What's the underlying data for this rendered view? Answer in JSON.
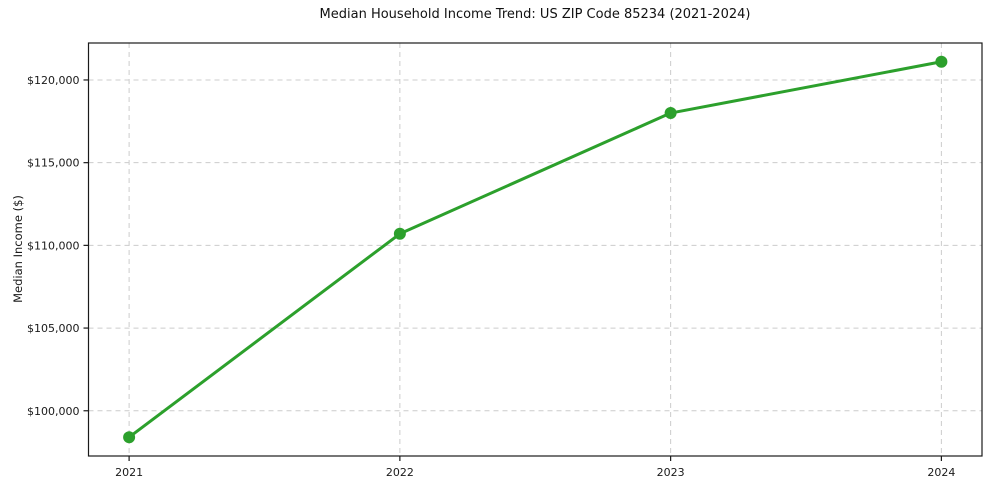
{
  "chart_data": {
    "type": "line",
    "title": "Median Household Income Trend: US ZIP Code 85234 (2021-2024)",
    "xlabel": "",
    "ylabel": "Median Income ($)",
    "x": [
      2021,
      2022,
      2023,
      2024
    ],
    "series": [
      {
        "name": "Median household income",
        "values": [
          98400,
          110700,
          118000,
          121100
        ],
        "color": "#2ca02c",
        "marker": "circle",
        "line_width": 3,
        "marker_radius": 6
      }
    ],
    "xticks": {
      "values": [
        2021,
        2022,
        2023,
        2024
      ],
      "labels": [
        "2021",
        "2022",
        "2023",
        "2024"
      ]
    },
    "yticks": {
      "values": [
        100000,
        105000,
        110000,
        115000,
        120000
      ],
      "labels": [
        "$100,000",
        "$105,000",
        "$110,000",
        "$115,000",
        "$120,000"
      ]
    },
    "xlim": [
      2020.85,
      2024.15
    ],
    "ylim": [
      97265,
      122235
    ],
    "grid": true,
    "grid_color": "#cccccc",
    "grid_style": "dashed",
    "legend": "none",
    "spine_color": "#1a1a1a",
    "background": "#ffffff"
  }
}
